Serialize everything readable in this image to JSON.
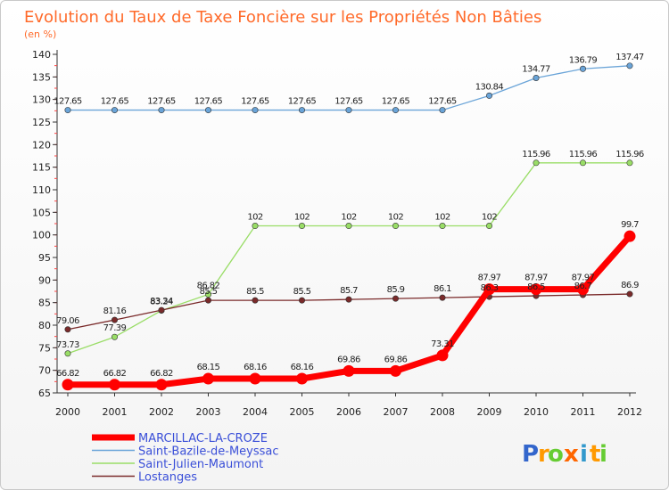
{
  "chart_data": {
    "type": "line",
    "title": "Evolution du Taux de Taxe Foncière sur les Propriétés Non Bâties",
    "unit_label": "(en %)",
    "x": [
      "2000",
      "2001",
      "2002",
      "2003",
      "2004",
      "2005",
      "2006",
      "2007",
      "2008",
      "2009",
      "2010",
      "2011",
      "2012"
    ],
    "ylim": [
      65,
      140
    ],
    "yticks": [
      65,
      70,
      75,
      80,
      85,
      90,
      95,
      100,
      105,
      110,
      115,
      120,
      125,
      130,
      135,
      140
    ],
    "grid": false,
    "legend_position": "bottom-left",
    "series": [
      {
        "name": "Saint-Bazile-de-Meyssac",
        "color": "#6aa4d8",
        "values": [
          127.65,
          127.65,
          127.65,
          127.65,
          127.65,
          127.65,
          127.65,
          127.65,
          127.65,
          130.84,
          134.77,
          136.79,
          137.47
        ],
        "labels": [
          "127.65",
          "127.65",
          "127.65",
          "127.65",
          "127.65",
          "127.65",
          "127.65",
          "127.65",
          "127.65",
          "130.84",
          "134.77",
          "136.79",
          "137.47"
        ]
      },
      {
        "name": "Saint-Julien-Maumont",
        "color": "#99dd66",
        "values": [
          73.73,
          77.39,
          83.24,
          86.82,
          102,
          102,
          102,
          102,
          102,
          102,
          115.96,
          115.96,
          115.96
        ],
        "labels": [
          "73.73",
          "77.39",
          "83.24",
          "86.82",
          "102",
          "102",
          "102",
          "102",
          "102",
          "102",
          "115.96",
          "115.96",
          "115.96"
        ]
      },
      {
        "name": "Lostanges",
        "color": "#7a2a2a",
        "values": [
          79.06,
          81.16,
          83.34,
          85.5,
          85.5,
          85.5,
          85.7,
          85.9,
          86.1,
          86.3,
          86.5,
          86.7,
          86.9
        ],
        "labels": [
          "79.06",
          "81.16",
          "83.34",
          "85.5",
          "85.5",
          "85.5",
          "85.7",
          "85.9",
          "86.1",
          "86.3",
          "86.5",
          "86.7",
          "86.9"
        ]
      },
      {
        "name": "MARCILLAC-LA-CROZE",
        "color": "#ff0000",
        "values": [
          66.82,
          66.82,
          66.82,
          68.15,
          68.16,
          68.16,
          69.86,
          69.86,
          73.31,
          87.97,
          87.97,
          87.97,
          99.7
        ],
        "labels": [
          "66.82",
          "66.82",
          "66.82",
          "68.15",
          "68.16",
          "68.16",
          "69.86",
          "69.86",
          "73.31",
          "87.97",
          "87.97",
          "87.97",
          "99.7"
        ]
      }
    ],
    "legend": [
      "MARCILLAC-LA-CROZE",
      "Saint-Bazile-de-Meyssac",
      "Saint-Julien-Maumont",
      "Lostanges"
    ]
  },
  "brand": {
    "letters": [
      "P",
      "r",
      "o",
      "x",
      "i",
      "t",
      "i"
    ],
    "colors": [
      "#3366cc",
      "#ff9900",
      "#66cc33",
      "#ff6600",
      "#3399cc",
      "#ff9900",
      "#66cc33"
    ]
  }
}
